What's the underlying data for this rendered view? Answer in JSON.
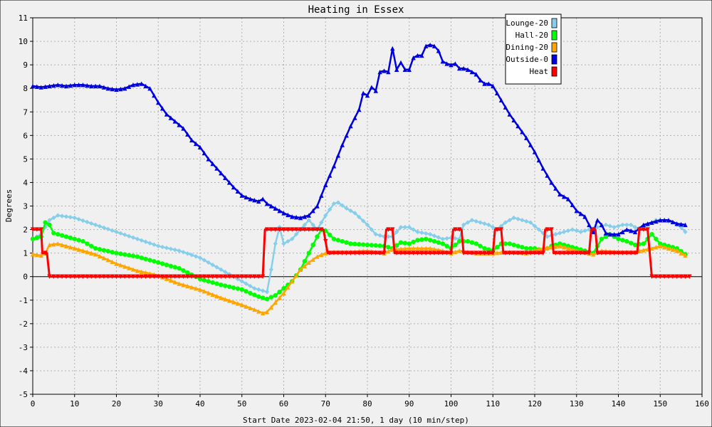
{
  "chart_data": {
    "type": "line",
    "title": "Heating in Essex",
    "xlabel": "Start Date 2023-02-04 21:50, 1 day (10 min/step)",
    "ylabel": "Degrees",
    "xlim": [
      0,
      160
    ],
    "ylim": [
      -5,
      11
    ],
    "xticks": [
      0,
      10,
      20,
      30,
      40,
      50,
      60,
      70,
      80,
      90,
      100,
      110,
      120,
      130,
      140,
      150,
      160
    ],
    "yticks": [
      -5,
      -4,
      -3,
      -2,
      -1,
      0,
      1,
      2,
      3,
      4,
      5,
      6,
      7,
      8,
      9,
      10,
      11
    ],
    "grid": true,
    "legend_position": "top-right",
    "series": [
      {
        "name": "Lounge-20",
        "color": "#87ceeb",
        "marker": "diamond",
        "points": [
          [
            0,
            1.6
          ],
          [
            2,
            1.8
          ],
          [
            4,
            2.4
          ],
          [
            6,
            2.6
          ],
          [
            10,
            2.5
          ],
          [
            15,
            2.2
          ],
          [
            20,
            1.9
          ],
          [
            25,
            1.6
          ],
          [
            30,
            1.3
          ],
          [
            35,
            1.1
          ],
          [
            40,
            0.8
          ],
          [
            45,
            0.3
          ],
          [
            50,
            -0.2
          ],
          [
            53,
            -0.5
          ],
          [
            56,
            -0.65
          ],
          [
            57,
            0.3
          ],
          [
            58,
            1.4
          ],
          [
            59,
            2.1
          ],
          [
            60,
            1.4
          ],
          [
            62,
            1.6
          ],
          [
            64,
            2.0
          ],
          [
            66,
            2.4
          ],
          [
            68,
            2.0
          ],
          [
            70,
            2.6
          ],
          [
            72,
            3.1
          ],
          [
            73,
            3.15
          ],
          [
            75,
            2.9
          ],
          [
            77,
            2.7
          ],
          [
            80,
            2.2
          ],
          [
            82,
            1.8
          ],
          [
            84,
            1.7
          ],
          [
            86,
            1.7
          ],
          [
            88,
            2.1
          ],
          [
            90,
            2.1
          ],
          [
            92,
            1.9
          ],
          [
            95,
            1.8
          ],
          [
            98,
            1.6
          ],
          [
            100,
            1.65
          ],
          [
            102,
            1.6
          ],
          [
            103,
            2.2
          ],
          [
            105,
            2.4
          ],
          [
            107,
            2.3
          ],
          [
            109,
            2.2
          ],
          [
            111,
            2.0
          ],
          [
            113,
            2.3
          ],
          [
            115,
            2.5
          ],
          [
            117,
            2.4
          ],
          [
            119,
            2.3
          ],
          [
            121,
            2.0
          ],
          [
            123,
            1.7
          ],
          [
            125,
            1.8
          ],
          [
            127,
            1.9
          ],
          [
            129,
            2.0
          ],
          [
            131,
            1.9
          ],
          [
            133,
            2.0
          ],
          [
            135,
            2.1
          ],
          [
            137,
            2.2
          ],
          [
            139,
            2.1
          ],
          [
            141,
            2.2
          ],
          [
            143,
            2.2
          ],
          [
            145,
            2.0
          ],
          [
            147,
            2.2
          ],
          [
            149,
            2.4
          ],
          [
            151,
            2.4
          ],
          [
            153,
            2.3
          ],
          [
            155,
            2.1
          ],
          [
            156,
            1.9
          ]
        ]
      },
      {
        "name": "Hall-20",
        "color": "#00ff00",
        "marker": "circle",
        "points": [
          [
            0,
            1.6
          ],
          [
            2,
            1.7
          ],
          [
            3,
            2.3
          ],
          [
            4,
            2.2
          ],
          [
            5,
            1.85
          ],
          [
            8,
            1.7
          ],
          [
            12,
            1.5
          ],
          [
            15,
            1.2
          ],
          [
            20,
            1.0
          ],
          [
            25,
            0.85
          ],
          [
            30,
            0.6
          ],
          [
            35,
            0.35
          ],
          [
            40,
            -0.1
          ],
          [
            45,
            -0.35
          ],
          [
            50,
            -0.55
          ],
          [
            54,
            -0.85
          ],
          [
            56,
            -0.95
          ],
          [
            58,
            -0.8
          ],
          [
            60,
            -0.5
          ],
          [
            62,
            -0.2
          ],
          [
            64,
            0.3
          ],
          [
            66,
            1.0
          ],
          [
            68,
            1.7
          ],
          [
            69,
            2.0
          ],
          [
            70,
            1.95
          ],
          [
            72,
            1.6
          ],
          [
            74,
            1.5
          ],
          [
            76,
            1.4
          ],
          [
            80,
            1.35
          ],
          [
            84,
            1.3
          ],
          [
            86,
            1.2
          ],
          [
            88,
            1.45
          ],
          [
            90,
            1.4
          ],
          [
            92,
            1.55
          ],
          [
            94,
            1.6
          ],
          [
            96,
            1.5
          ],
          [
            98,
            1.4
          ],
          [
            100,
            1.2
          ],
          [
            102,
            1.5
          ],
          [
            104,
            1.5
          ],
          [
            106,
            1.4
          ],
          [
            108,
            1.2
          ],
          [
            110,
            1.1
          ],
          [
            112,
            1.4
          ],
          [
            114,
            1.4
          ],
          [
            116,
            1.3
          ],
          [
            118,
            1.2
          ],
          [
            120,
            1.2
          ],
          [
            122,
            1.1
          ],
          [
            124,
            1.3
          ],
          [
            126,
            1.4
          ],
          [
            128,
            1.3
          ],
          [
            130,
            1.2
          ],
          [
            132,
            1.1
          ],
          [
            134,
            1.0
          ],
          [
            136,
            1.6
          ],
          [
            138,
            1.8
          ],
          [
            140,
            1.6
          ],
          [
            142,
            1.5
          ],
          [
            144,
            1.35
          ],
          [
            146,
            1.4
          ],
          [
            148,
            1.8
          ],
          [
            150,
            1.4
          ],
          [
            152,
            1.3
          ],
          [
            154,
            1.2
          ],
          [
            156,
            0.95
          ]
        ]
      },
      {
        "name": "Dining-20",
        "color": "#ffa500",
        "marker": "triangle",
        "points": [
          [
            0,
            0.95
          ],
          [
            2,
            0.9
          ],
          [
            3,
            1.0
          ],
          [
            4,
            1.35
          ],
          [
            6,
            1.4
          ],
          [
            10,
            1.2
          ],
          [
            15,
            0.95
          ],
          [
            20,
            0.55
          ],
          [
            25,
            0.25
          ],
          [
            30,
            0.05
          ],
          [
            35,
            -0.3
          ],
          [
            40,
            -0.55
          ],
          [
            45,
            -0.9
          ],
          [
            50,
            -1.2
          ],
          [
            53,
            -1.4
          ],
          [
            55,
            -1.55
          ],
          [
            56,
            -1.5
          ],
          [
            58,
            -1.1
          ],
          [
            60,
            -0.7
          ],
          [
            62,
            -0.2
          ],
          [
            64,
            0.3
          ],
          [
            66,
            0.6
          ],
          [
            68,
            0.85
          ],
          [
            70,
            1.0
          ],
          [
            72,
            1.05
          ],
          [
            76,
            1.05
          ],
          [
            80,
            1.1
          ],
          [
            84,
            1.0
          ],
          [
            86,
            1.15
          ],
          [
            90,
            1.2
          ],
          [
            95,
            1.2
          ],
          [
            98,
            1.1
          ],
          [
            100,
            1.0
          ],
          [
            102,
            1.1
          ],
          [
            106,
            1.0
          ],
          [
            110,
            1.0
          ],
          [
            114,
            1.05
          ],
          [
            118,
            1.0
          ],
          [
            122,
            1.2
          ],
          [
            126,
            1.3
          ],
          [
            130,
            1.1
          ],
          [
            134,
            0.95
          ],
          [
            136,
            1.1
          ],
          [
            140,
            1.05
          ],
          [
            144,
            1.05
          ],
          [
            148,
            1.2
          ],
          [
            150,
            1.3
          ],
          [
            154,
            1.1
          ],
          [
            156,
            0.9
          ]
        ]
      },
      {
        "name": "Outside-0",
        "color": "#0000dd",
        "marker": "triangle",
        "points": [
          [
            0,
            8.1
          ],
          [
            2,
            8.05
          ],
          [
            4,
            8.1
          ],
          [
            6,
            8.15
          ],
          [
            8,
            8.1
          ],
          [
            10,
            8.15
          ],
          [
            12,
            8.15
          ],
          [
            14,
            8.1
          ],
          [
            16,
            8.1
          ],
          [
            18,
            8.0
          ],
          [
            20,
            7.95
          ],
          [
            22,
            8.0
          ],
          [
            24,
            8.15
          ],
          [
            26,
            8.2
          ],
          [
            28,
            8.0
          ],
          [
            30,
            7.4
          ],
          [
            32,
            6.9
          ],
          [
            34,
            6.6
          ],
          [
            36,
            6.3
          ],
          [
            38,
            5.8
          ],
          [
            40,
            5.5
          ],
          [
            42,
            5.0
          ],
          [
            44,
            4.6
          ],
          [
            46,
            4.2
          ],
          [
            48,
            3.8
          ],
          [
            50,
            3.45
          ],
          [
            52,
            3.3
          ],
          [
            54,
            3.2
          ],
          [
            55,
            3.3
          ],
          [
            56,
            3.1
          ],
          [
            58,
            2.9
          ],
          [
            60,
            2.7
          ],
          [
            62,
            2.55
          ],
          [
            64,
            2.5
          ],
          [
            66,
            2.6
          ],
          [
            68,
            3.0
          ],
          [
            70,
            3.9
          ],
          [
            72,
            4.7
          ],
          [
            74,
            5.6
          ],
          [
            76,
            6.4
          ],
          [
            78,
            7.1
          ],
          [
            79,
            7.8
          ],
          [
            80,
            7.7
          ],
          [
            81,
            8.05
          ],
          [
            82,
            7.9
          ],
          [
            83,
            8.7
          ],
          [
            84,
            8.75
          ],
          [
            85,
            8.7
          ],
          [
            86,
            9.7
          ],
          [
            87,
            8.8
          ],
          [
            88,
            9.1
          ],
          [
            89,
            8.8
          ],
          [
            90,
            8.8
          ],
          [
            91,
            9.3
          ],
          [
            92,
            9.4
          ],
          [
            93,
            9.4
          ],
          [
            94,
            9.8
          ],
          [
            95,
            9.85
          ],
          [
            96,
            9.8
          ],
          [
            97,
            9.6
          ],
          [
            98,
            9.15
          ],
          [
            99,
            9.05
          ],
          [
            100,
            9.0
          ],
          [
            101,
            9.05
          ],
          [
            102,
            8.85
          ],
          [
            103,
            8.85
          ],
          [
            104,
            8.8
          ],
          [
            105,
            8.7
          ],
          [
            106,
            8.6
          ],
          [
            107,
            8.35
          ],
          [
            108,
            8.2
          ],
          [
            109,
            8.2
          ],
          [
            110,
            8.1
          ],
          [
            112,
            7.5
          ],
          [
            114,
            6.9
          ],
          [
            116,
            6.4
          ],
          [
            118,
            5.9
          ],
          [
            120,
            5.3
          ],
          [
            122,
            4.6
          ],
          [
            124,
            4.0
          ],
          [
            126,
            3.5
          ],
          [
            128,
            3.3
          ],
          [
            130,
            2.8
          ],
          [
            132,
            2.55
          ],
          [
            133,
            2.2
          ],
          [
            134,
            1.9
          ],
          [
            135,
            2.4
          ],
          [
            136,
            2.2
          ],
          [
            137,
            1.85
          ],
          [
            138,
            1.8
          ],
          [
            140,
            1.8
          ],
          [
            142,
            2.0
          ],
          [
            144,
            1.9
          ],
          [
            146,
            2.2
          ],
          [
            148,
            2.3
          ],
          [
            150,
            2.4
          ],
          [
            152,
            2.4
          ],
          [
            154,
            2.25
          ],
          [
            156,
            2.2
          ]
        ]
      },
      {
        "name": "Heat",
        "color": "#ff0000",
        "marker": "triangle-down",
        "points": [
          [
            0,
            2
          ],
          [
            2,
            2
          ],
          [
            2.3,
            1
          ],
          [
            3.4,
            1
          ],
          [
            4,
            0
          ],
          [
            55,
            0
          ],
          [
            55.5,
            2
          ],
          [
            69.5,
            2
          ],
          [
            70.5,
            1
          ],
          [
            84,
            1
          ],
          [
            84.5,
            2
          ],
          [
            86,
            2
          ],
          [
            86.5,
            1
          ],
          [
            100,
            1
          ],
          [
            100.5,
            2
          ],
          [
            102.5,
            2
          ],
          [
            103,
            1
          ],
          [
            110,
            1
          ],
          [
            110.5,
            2
          ],
          [
            112,
            2
          ],
          [
            112.5,
            1
          ],
          [
            122,
            1
          ],
          [
            122.5,
            2
          ],
          [
            124,
            2
          ],
          [
            124.5,
            1
          ],
          [
            133,
            1
          ],
          [
            133.5,
            2
          ],
          [
            134.5,
            2
          ],
          [
            135,
            1
          ],
          [
            144.5,
            1
          ],
          [
            145,
            2
          ],
          [
            147,
            2
          ],
          [
            148,
            0
          ],
          [
            157,
            0
          ]
        ]
      }
    ]
  }
}
